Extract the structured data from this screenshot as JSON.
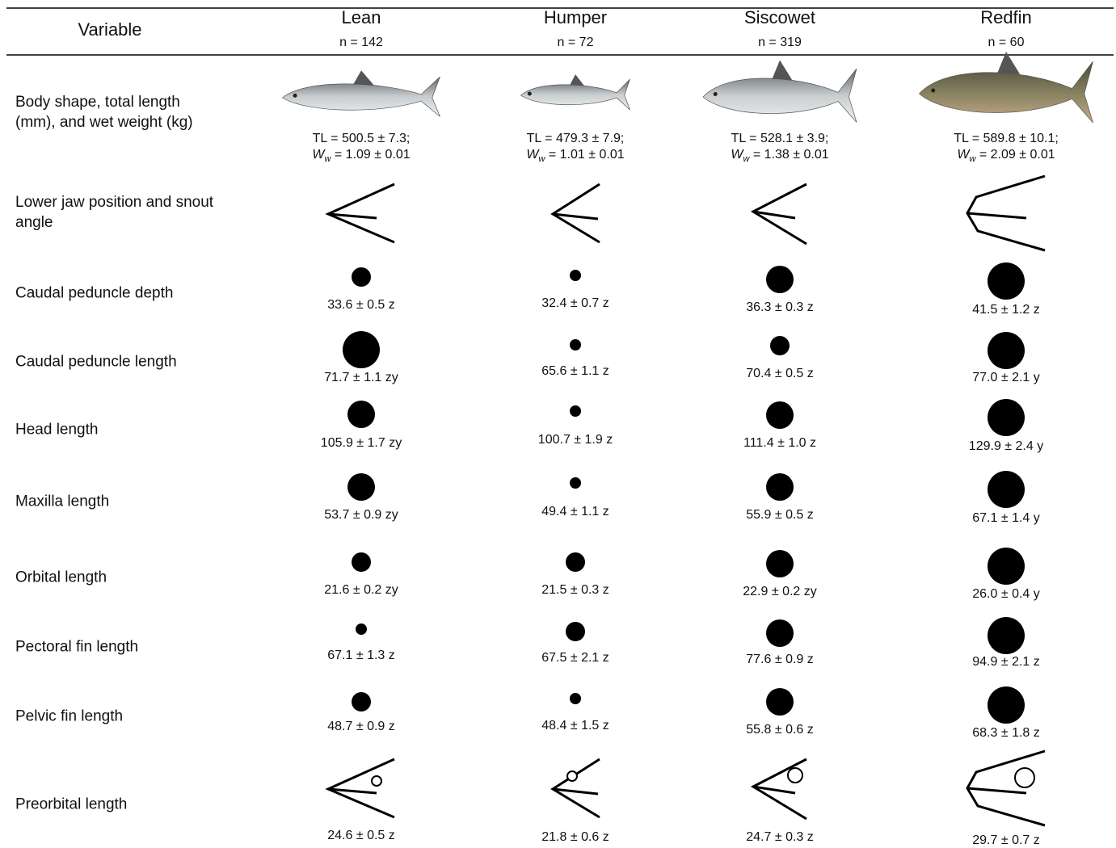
{
  "table": {
    "header": {
      "variable": "Variable",
      "columns": [
        {
          "name": "Lean",
          "n": "n = 142"
        },
        {
          "name": "Humper",
          "n": "n = 72"
        },
        {
          "name": "Siscowet",
          "n": "n = 319"
        },
        {
          "name": "Redfin",
          "n": "n = 60"
        }
      ]
    },
    "weight_symbol": "W",
    "weight_subscript": "w",
    "rows": [
      {
        "label": "Body shape, total length (mm), and wet weight (kg)",
        "cells": [
          {
            "tl": "TL = 500.5 ± 7.3;",
            "ww": "= 1.09 ± 0.01"
          },
          {
            "tl": "TL = 479.3 ± 7.9;",
            "ww": "= 1.01 ± 0.01"
          },
          {
            "tl": "TL = 528.1 ± 3.9;",
            "ww": "= 1.38 ± 0.01"
          },
          {
            "tl": "TL = 589.8 ± 10.1;",
            "ww": "= 2.09 ± 0.01"
          }
        ]
      },
      {
        "label": "Lower jaw position and snout angle"
      },
      {
        "label": "Caudal peduncle depth",
        "cells": [
          "33.6 ± 0.5 z",
          "32.4 ± 0.7 z",
          "36.3 ± 0.3 z",
          "41.5 ± 1.2 z"
        ]
      },
      {
        "label": "Caudal peduncle length",
        "cells": [
          "71.7 ± 1.1 zy",
          "65.6 ± 1.1 z",
          "70.4 ± 0.5 z",
          "77.0 ± 2.1 y"
        ]
      },
      {
        "label": "Head length",
        "cells": [
          "105.9 ± 1.7 zy",
          "100.7 ± 1.9 z",
          "111.4 ± 1.0 z",
          "129.9 ± 2.4 y"
        ]
      },
      {
        "label": "Maxilla length",
        "cells": [
          "53.7 ± 0.9 zy",
          "49.4 ± 1.1 z",
          "55.9 ± 0.5 z",
          "67.1 ± 1.4 y"
        ]
      },
      {
        "label": "Orbital length",
        "cells": [
          "21.6 ± 0.2 zy",
          "21.5 ± 0.3 z",
          "22.9 ± 0.2 zy",
          "26.0 ± 0.4 y"
        ]
      },
      {
        "label": "Pectoral fin length",
        "cells": [
          "67.1 ± 1.3 z",
          "67.5 ± 2.1 z",
          "77.6 ± 0.9 z",
          "94.9 ± 2.1 z"
        ]
      },
      {
        "label": "Pelvic fin length",
        "cells": [
          "48.7 ± 0.9 z",
          "48.4 ± 1.5 z",
          "55.8 ± 0.6 z",
          "68.3 ± 1.8 z"
        ]
      },
      {
        "label": "Preorbital length",
        "cells": [
          "24.6 ± 0.5 z",
          "21.8 ± 0.6 z",
          "24.7 ± 0.3 z",
          "29.7 ± 0.7 z"
        ]
      }
    ]
  }
}
